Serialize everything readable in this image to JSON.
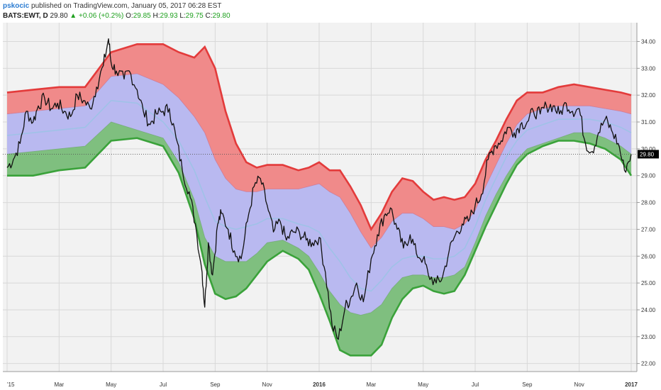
{
  "header": {
    "author": "pskocic",
    "published": "published on TradingView.com, January 05, 2017 06:28 EST",
    "symbol": "BATS:EWT, D",
    "last": "29.80",
    "arrow": "▲",
    "change": "+0.06 (+0.2%)",
    "o_label": "O:",
    "o_value": "29.85",
    "h_label": "H:",
    "h_value": "29.93",
    "l_label": "L:",
    "l_value": "29.75",
    "c_label": "C:",
    "c_value": "29.80"
  },
  "colors": {
    "price": "#111111",
    "upper_band_line": "#e33b3b",
    "upper_band_fill": "#f08a8a",
    "middle_band_fill": "#b9b9f0",
    "lower_band_fill": "#7fbf7f",
    "lower_band_line": "#3aa23a",
    "midline": "#9cc3e6",
    "grid": "#d8d8d8",
    "plot_bg": "#f2f2f2",
    "axis_text": "#333333",
    "last_price_badge": "#000000"
  },
  "chart_data": {
    "type": "line",
    "title": "",
    "xlabel": "",
    "ylabel": "",
    "ylim": [
      21.7,
      34.7
    ],
    "y_ticks": [
      "22.00",
      "23.00",
      "24.00",
      "25.00",
      "26.00",
      "27.00",
      "28.00",
      "29.00",
      "30.00",
      "31.00",
      "32.00",
      "33.00",
      "34.00"
    ],
    "x_ticks": [
      {
        "label": "'15",
        "x": 0.0,
        "bold": false
      },
      {
        "label": "Mar",
        "x": 1.0,
        "bold": false
      },
      {
        "label": "May",
        "x": 2.0,
        "bold": false
      },
      {
        "label": "Jul",
        "x": 3.0,
        "bold": false
      },
      {
        "label": "Sep",
        "x": 4.0,
        "bold": false
      },
      {
        "label": "Nov",
        "x": 5.0,
        "bold": false
      },
      {
        "label": "2016",
        "x": 6.0,
        "bold": true
      },
      {
        "label": "Mar",
        "x": 7.0,
        "bold": false
      },
      {
        "label": "May",
        "x": 8.0,
        "bold": false
      },
      {
        "label": "Jul",
        "x": 9.0,
        "bold": false
      },
      {
        "label": "Sep",
        "x": 10.0,
        "bold": false
      },
      {
        "label": "Nov",
        "x": 11.0,
        "bold": false
      },
      {
        "label": "2017",
        "x": 12.0,
        "bold": true
      }
    ],
    "last_price": 29.8,
    "last_price_label": "29.80",
    "series": [
      {
        "name": "",
        "role": "price",
        "x": [
          0.0,
          0.12,
          0.25,
          0.37,
          0.5,
          0.6,
          0.72,
          0.85,
          0.97,
          1.1,
          1.22,
          1.35,
          1.47,
          1.6,
          1.72,
          1.85,
          1.95,
          2.0,
          2.1,
          2.25,
          2.35,
          2.5,
          2.62,
          2.75,
          2.87,
          3.0,
          3.12,
          3.25,
          3.37,
          3.5,
          3.62,
          3.75,
          3.8,
          3.87,
          3.95,
          4.05,
          4.12,
          4.25,
          4.37,
          4.5,
          4.62,
          4.75,
          4.87,
          5.0,
          5.12,
          5.25,
          5.37,
          5.5,
          5.62,
          5.75,
          5.87,
          6.0,
          6.12,
          6.25,
          6.37,
          6.5,
          6.6,
          6.72,
          6.85,
          7.0,
          7.12,
          7.25,
          7.37,
          7.5,
          7.62,
          7.75,
          7.87,
          8.0,
          8.1,
          8.25,
          8.37,
          8.5,
          8.62,
          8.75,
          8.87,
          9.0,
          9.12,
          9.25,
          9.37,
          9.5,
          9.62,
          9.75,
          9.87,
          10.0,
          10.12,
          10.25,
          10.37,
          10.5,
          10.62,
          10.75,
          10.87,
          11.0,
          11.12,
          11.25,
          11.37,
          11.5,
          11.62,
          11.75,
          11.87,
          12.0
        ],
        "y": [
          29.3,
          29.6,
          30.2,
          31.4,
          31.0,
          31.6,
          31.9,
          31.5,
          31.7,
          31.4,
          31.2,
          32.0,
          31.8,
          31.5,
          32.3,
          33.1,
          34.1,
          33.2,
          32.9,
          32.6,
          32.9,
          32.2,
          31.4,
          30.9,
          31.3,
          31.4,
          31.5,
          30.4,
          29.2,
          28.4,
          27.2,
          25.4,
          24.1,
          26.5,
          25.3,
          27.2,
          27.6,
          27.0,
          26.2,
          25.9,
          27.3,
          28.6,
          28.9,
          27.9,
          26.9,
          27.3,
          26.6,
          26.9,
          26.9,
          26.6,
          26.5,
          26.7,
          25.4,
          23.4,
          22.9,
          24.1,
          24.4,
          25.0,
          24.3,
          25.9,
          26.8,
          27.5,
          27.8,
          27.0,
          26.3,
          26.8,
          26.1,
          25.9,
          25.3,
          25.0,
          25.2,
          26.2,
          26.8,
          27.2,
          27.3,
          27.9,
          28.3,
          29.6,
          30.1,
          30.3,
          30.8,
          30.6,
          30.9,
          31.0,
          31.4,
          31.3,
          31.6,
          31.6,
          31.3,
          31.7,
          31.4,
          31.5,
          30.2,
          29.9,
          30.6,
          31.1,
          30.7,
          30.2,
          29.2,
          29.8
        ]
      },
      {
        "name": "",
        "role": "upper_band",
        "x": [
          0.0,
          0.5,
          1.0,
          1.5,
          2.0,
          2.5,
          3.0,
          3.3,
          3.6,
          3.8,
          4.0,
          4.2,
          4.4,
          4.6,
          4.8,
          5.0,
          5.3,
          5.6,
          5.8,
          6.0,
          6.2,
          6.4,
          6.6,
          6.8,
          7.0,
          7.2,
          7.4,
          7.6,
          7.8,
          8.0,
          8.2,
          8.4,
          8.6,
          8.8,
          9.0,
          9.2,
          9.4,
          9.6,
          9.8,
          10.0,
          10.3,
          10.6,
          10.9,
          11.2,
          11.5,
          11.8,
          12.0
        ],
        "y": [
          32.1,
          32.2,
          32.3,
          32.3,
          33.6,
          33.9,
          33.9,
          33.6,
          33.4,
          33.8,
          33.0,
          31.4,
          30.2,
          29.5,
          29.3,
          29.4,
          29.4,
          29.2,
          29.3,
          29.5,
          29.2,
          29.2,
          28.6,
          27.9,
          27.0,
          27.6,
          28.4,
          28.9,
          28.8,
          28.4,
          28.1,
          28.2,
          28.1,
          28.2,
          28.7,
          29.6,
          30.3,
          31.1,
          31.8,
          32.1,
          32.1,
          32.3,
          32.4,
          32.3,
          32.2,
          32.1,
          32.0
        ]
      },
      {
        "name": "",
        "role": "upper_inner",
        "x": [
          0.0,
          0.5,
          1.0,
          1.5,
          2.0,
          2.5,
          3.0,
          3.3,
          3.6,
          3.8,
          4.0,
          4.2,
          4.4,
          4.6,
          4.8,
          5.0,
          5.3,
          5.6,
          5.8,
          6.0,
          6.2,
          6.4,
          6.6,
          6.8,
          7.0,
          7.2,
          7.4,
          7.6,
          7.8,
          8.0,
          8.2,
          8.4,
          8.6,
          8.8,
          9.0,
          9.2,
          9.4,
          9.6,
          9.8,
          10.0,
          10.3,
          10.6,
          10.9,
          11.2,
          11.5,
          11.8,
          12.0
        ],
        "y": [
          31.3,
          31.4,
          31.5,
          31.6,
          32.7,
          32.8,
          32.4,
          31.9,
          31.2,
          30.6,
          29.6,
          28.9,
          28.5,
          28.4,
          28.4,
          28.5,
          28.5,
          28.5,
          28.6,
          28.7,
          28.4,
          28.2,
          27.6,
          26.9,
          26.3,
          26.7,
          27.3,
          27.6,
          27.6,
          27.4,
          27.1,
          27.1,
          27.0,
          27.2,
          27.7,
          28.6,
          29.4,
          30.2,
          30.9,
          31.3,
          31.5,
          31.6,
          31.6,
          31.6,
          31.5,
          31.4,
          31.3
        ]
      },
      {
        "name": "",
        "role": "midline",
        "x": [
          0.0,
          0.5,
          1.0,
          1.5,
          2.0,
          2.5,
          3.0,
          3.3,
          3.6,
          3.8,
          4.0,
          4.2,
          4.4,
          4.6,
          4.8,
          5.0,
          5.3,
          5.6,
          5.8,
          6.0,
          6.2,
          6.4,
          6.6,
          6.8,
          7.0,
          7.2,
          7.4,
          7.6,
          7.8,
          8.0,
          8.2,
          8.4,
          8.6,
          8.8,
          9.0,
          9.2,
          9.4,
          9.6,
          9.8,
          10.0,
          10.3,
          10.6,
          10.9,
          11.2,
          11.5,
          11.8,
          12.0
        ],
        "y": [
          30.5,
          30.6,
          30.7,
          30.8,
          31.8,
          31.7,
          31.0,
          30.3,
          29.2,
          28.2,
          27.3,
          27.1,
          27.0,
          27.1,
          27.2,
          27.4,
          27.4,
          27.2,
          27.1,
          26.9,
          26.3,
          25.8,
          25.2,
          24.8,
          24.7,
          25.1,
          25.6,
          25.9,
          26.0,
          26.0,
          25.9,
          25.9,
          26.0,
          26.3,
          27.1,
          28.1,
          28.9,
          29.7,
          30.3,
          30.7,
          30.9,
          31.1,
          31.1,
          31.1,
          31.0,
          30.8,
          30.6
        ]
      },
      {
        "name": "",
        "role": "lower_inner",
        "x": [
          0.0,
          0.5,
          1.0,
          1.5,
          2.0,
          2.5,
          3.0,
          3.3,
          3.6,
          3.8,
          4.0,
          4.2,
          4.4,
          4.6,
          4.8,
          5.0,
          5.3,
          5.6,
          5.8,
          6.0,
          6.2,
          6.4,
          6.6,
          6.8,
          7.0,
          7.2,
          7.4,
          7.6,
          7.8,
          8.0,
          8.2,
          8.4,
          8.6,
          8.8,
          9.0,
          9.2,
          9.4,
          9.6,
          9.8,
          10.0,
          10.3,
          10.6,
          10.9,
          11.2,
          11.5,
          11.8,
          12.0
        ],
        "y": [
          29.8,
          29.9,
          30.0,
          30.1,
          31.0,
          30.7,
          30.4,
          29.5,
          28.1,
          26.7,
          26.0,
          25.8,
          25.8,
          25.8,
          26.1,
          26.5,
          26.6,
          26.3,
          26.0,
          25.4,
          24.7,
          24.2,
          23.9,
          23.8,
          23.9,
          24.2,
          24.8,
          25.2,
          25.3,
          25.3,
          25.2,
          25.2,
          25.3,
          25.6,
          26.5,
          27.5,
          28.3,
          29.0,
          29.6,
          30.0,
          30.2,
          30.4,
          30.6,
          30.6,
          30.4,
          30.1,
          29.8
        ]
      },
      {
        "name": "",
        "role": "lower_band",
        "x": [
          0.0,
          0.5,
          1.0,
          1.5,
          2.0,
          2.5,
          3.0,
          3.3,
          3.6,
          3.8,
          4.0,
          4.2,
          4.4,
          4.6,
          4.8,
          5.0,
          5.3,
          5.6,
          5.8,
          6.0,
          6.2,
          6.4,
          6.6,
          6.8,
          7.0,
          7.2,
          7.4,
          7.6,
          7.8,
          8.0,
          8.2,
          8.4,
          8.6,
          8.8,
          9.0,
          9.2,
          9.4,
          9.6,
          9.8,
          10.0,
          10.3,
          10.6,
          10.9,
          11.2,
          11.5,
          11.8,
          12.0
        ],
        "y": [
          29.0,
          29.0,
          29.2,
          29.3,
          30.3,
          30.4,
          30.1,
          29.1,
          27.4,
          25.7,
          24.6,
          24.4,
          24.5,
          24.8,
          25.3,
          25.8,
          26.2,
          25.9,
          25.5,
          24.6,
          23.6,
          22.5,
          22.3,
          22.3,
          22.3,
          22.7,
          23.7,
          24.4,
          24.8,
          24.9,
          24.7,
          24.6,
          24.7,
          25.3,
          26.2,
          27.1,
          27.9,
          28.7,
          29.4,
          29.8,
          30.1,
          30.3,
          30.3,
          30.2,
          30.0,
          29.6,
          29.0
        ]
      }
    ]
  }
}
